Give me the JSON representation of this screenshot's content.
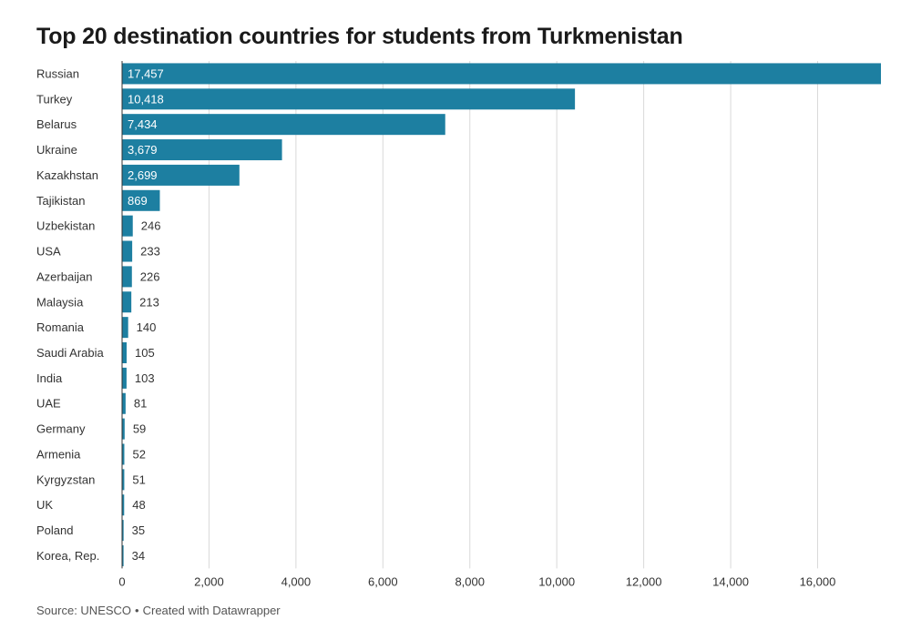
{
  "title": "Top 20 destination countries for students from Turkmenistan",
  "footer": {
    "source": "Source: UNESCO",
    "separator": "•",
    "credit": "Created with Datawrapper"
  },
  "colors": {
    "bar": "#1d7fa1",
    "grid": "#d9d9d9",
    "axis": "#333333",
    "label_inside": "#ffffff",
    "label_outside": "#333333"
  },
  "chart_data": {
    "type": "bar",
    "orientation": "horizontal",
    "title": "Top 20 destination countries for students from Turkmenistan",
    "categories": [
      "Russian",
      "Turkey",
      "Belarus",
      "Ukraine",
      "Kazakhstan",
      "Tajikistan",
      "Uzbekistan",
      "USA",
      "Azerbaijan",
      "Malaysia",
      "Romania",
      "Saudi Arabia",
      "India",
      "UAE",
      "Germany",
      "Armenia",
      "Kyrgyzstan",
      "UK",
      "Poland",
      "Korea, Rep."
    ],
    "values": [
      17457,
      10418,
      7434,
      3679,
      2699,
      869,
      246,
      233,
      226,
      213,
      140,
      105,
      103,
      81,
      59,
      52,
      51,
      48,
      35,
      34
    ],
    "value_labels": [
      "17,457",
      "10,418",
      "7,434",
      "3,679",
      "2,699",
      "869",
      "246",
      "233",
      "226",
      "213",
      "140",
      "105",
      "103",
      "81",
      "59",
      "52",
      "51",
      "48",
      "35",
      "34"
    ],
    "xlim": [
      0,
      17457
    ],
    "xticks": [
      0,
      2000,
      4000,
      6000,
      8000,
      10000,
      12000,
      14000,
      16000
    ],
    "xtick_labels": [
      "0",
      "2,000",
      "4,000",
      "6,000",
      "8,000",
      "10,000",
      "12,000",
      "14,000",
      "16,000"
    ],
    "grid": true,
    "legend": "none"
  }
}
